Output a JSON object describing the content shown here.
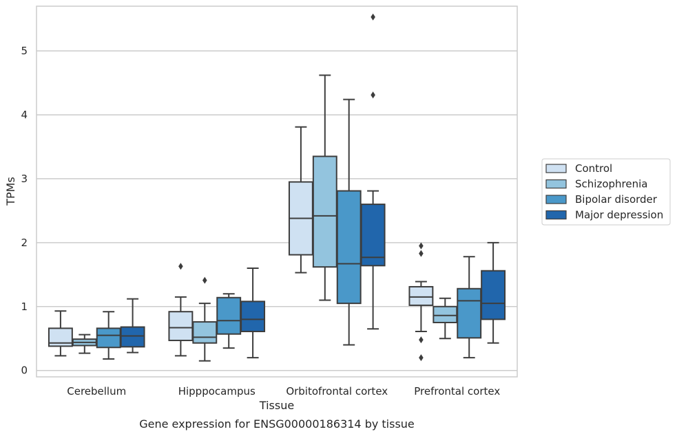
{
  "chart_data": {
    "type": "box",
    "xlabel": "Tissue",
    "ylabel": "TPMs",
    "caption": "Gene expression for ENSG00000186314 by tissue",
    "ylim": [
      -0.1,
      5.7
    ],
    "yticks": [
      0,
      1,
      2,
      3,
      4,
      5
    ],
    "grid": "horizontal",
    "legend_position": "right",
    "categories": [
      "Cerebellum",
      "Hipppocampus",
      "Orbitofrontal cortex",
      "Prefrontal cortex"
    ],
    "series": [
      {
        "name": "Control",
        "color": "#cfe1f2",
        "boxes": [
          {
            "whisker_low": 0.23,
            "q1": 0.38,
            "median": 0.43,
            "q3": 0.66,
            "whisker_high": 0.93,
            "outliers": []
          },
          {
            "whisker_low": 0.23,
            "q1": 0.47,
            "median": 0.67,
            "q3": 0.92,
            "whisker_high": 1.15,
            "outliers": [
              1.63
            ]
          },
          {
            "whisker_low": 1.53,
            "q1": 1.81,
            "median": 2.38,
            "q3": 2.95,
            "whisker_high": 3.81,
            "outliers": []
          },
          {
            "whisker_low": 0.61,
            "q1": 1.02,
            "median": 1.15,
            "q3": 1.31,
            "whisker_high": 1.39,
            "outliers": [
              1.95,
              1.83,
              0.48,
              0.2
            ]
          }
        ]
      },
      {
        "name": "Schizophrenia",
        "color": "#93c4de",
        "boxes": [
          {
            "whisker_low": 0.27,
            "q1": 0.39,
            "median": 0.44,
            "q3": 0.49,
            "whisker_high": 0.56,
            "outliers": []
          },
          {
            "whisker_low": 0.15,
            "q1": 0.43,
            "median": 0.52,
            "q3": 0.76,
            "whisker_high": 1.05,
            "outliers": [
              1.41
            ]
          },
          {
            "whisker_low": 1.1,
            "q1": 1.62,
            "median": 2.42,
            "q3": 3.35,
            "whisker_high": 4.62,
            "outliers": []
          },
          {
            "whisker_low": 0.5,
            "q1": 0.75,
            "median": 0.86,
            "q3": 1.0,
            "whisker_high": 1.13,
            "outliers": []
          }
        ]
      },
      {
        "name": "Bipolar disorder",
        "color": "#4a98c9",
        "boxes": [
          {
            "whisker_low": 0.18,
            "q1": 0.36,
            "median": 0.55,
            "q3": 0.66,
            "whisker_high": 0.92,
            "outliers": []
          },
          {
            "whisker_low": 0.35,
            "q1": 0.57,
            "median": 0.78,
            "q3": 1.14,
            "whisker_high": 1.2,
            "outliers": []
          },
          {
            "whisker_low": 0.4,
            "q1": 1.05,
            "median": 1.67,
            "q3": 2.81,
            "whisker_high": 4.24,
            "outliers": []
          },
          {
            "whisker_low": 0.2,
            "q1": 0.51,
            "median": 1.09,
            "q3": 1.28,
            "whisker_high": 1.78,
            "outliers": []
          }
        ]
      },
      {
        "name": "Major depression",
        "color": "#2166ac",
        "boxes": [
          {
            "whisker_low": 0.28,
            "q1": 0.37,
            "median": 0.54,
            "q3": 0.68,
            "whisker_high": 1.12,
            "outliers": []
          },
          {
            "whisker_low": 0.2,
            "q1": 0.61,
            "median": 0.8,
            "q3": 1.08,
            "whisker_high": 1.6,
            "outliers": []
          },
          {
            "whisker_low": 0.65,
            "q1": 1.64,
            "median": 1.77,
            "q3": 2.6,
            "whisker_high": 2.81,
            "outliers": [
              5.53,
              4.31
            ]
          },
          {
            "whisker_low": 0.43,
            "q1": 0.8,
            "median": 1.05,
            "q3": 1.56,
            "whisker_high": 2.0,
            "outliers": []
          }
        ]
      }
    ]
  }
}
